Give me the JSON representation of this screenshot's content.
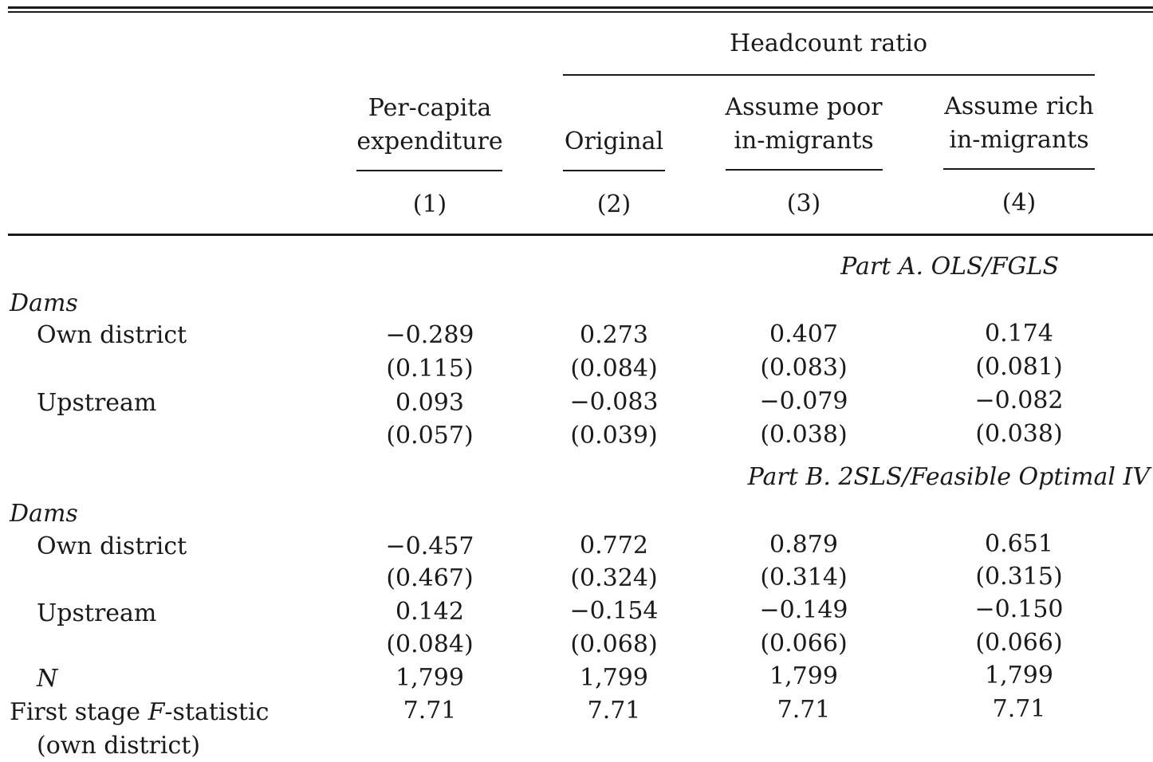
{
  "header": {
    "group_label": "Headcount ratio",
    "col1_line1": "Per-capita",
    "col1_line2": "expenditure",
    "col2": "Original",
    "col3_line1": "Assume poor",
    "col3_line2": "in-migrants",
    "col4_line1": "Assume rich",
    "col4_line2": "in-migrants",
    "col_numbers": [
      "(1)",
      "(2)",
      "(3)",
      "(4)"
    ]
  },
  "part_a": {
    "title": "Part A. OLS/FGLS",
    "group": "Dams",
    "rows": [
      {
        "label": "Own district",
        "values": [
          "−0.289",
          "0.273",
          "0.407",
          "0.174"
        ]
      },
      {
        "label": "",
        "values": [
          "(0.115)",
          "(0.084)",
          "(0.083)",
          "(0.081)"
        ]
      },
      {
        "label": "Upstream",
        "values": [
          "0.093",
          "−0.083",
          "−0.079",
          "−0.082"
        ]
      },
      {
        "label": "",
        "values": [
          "(0.057)",
          "(0.039)",
          "(0.038)",
          "(0.038)"
        ]
      }
    ]
  },
  "part_b": {
    "title": "Part B. 2SLS/Feasible Optimal IV",
    "group": "Dams",
    "rows": [
      {
        "label": "Own district",
        "values": [
          "−0.457",
          "0.772",
          "0.879",
          "0.651"
        ]
      },
      {
        "label": "",
        "values": [
          "(0.467)",
          "(0.324)",
          "(0.314)",
          "(0.315)"
        ]
      },
      {
        "label": "Upstream",
        "values": [
          "0.142",
          "−0.154",
          "−0.149",
          "−0.150"
        ]
      },
      {
        "label": "",
        "values": [
          "(0.084)",
          "(0.068)",
          "(0.066)",
          "(0.066)"
        ]
      }
    ]
  },
  "footer": {
    "n_label": "N",
    "n_values": [
      "1,799",
      "1,799",
      "1,799",
      "1,799"
    ],
    "f_label_pre": "First stage ",
    "f_label_italic": "F",
    "f_label_post": "-statistic",
    "f_label_line2": "(own district)",
    "f_values": [
      "7.71",
      "7.71",
      "7.71",
      "7.71"
    ]
  }
}
